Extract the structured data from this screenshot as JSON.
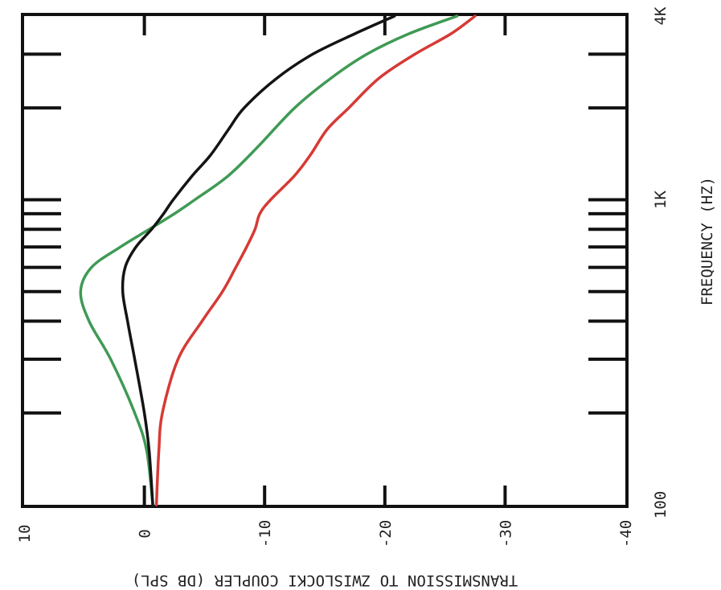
{
  "chart_data": {
    "type": "line",
    "orientation": "rotated 90° clockwise (frequency axis runs vertically, level axis horizontally, tick labels drawn rotated)",
    "xlabel": "FREQUENCY (HZ)",
    "ylabel": "TRANSMISSION TO ZWISLOCKI COUPLER (DB SPL)",
    "x_scale": "log",
    "x_range": [
      100,
      4000
    ],
    "x_tick_labels": [
      {
        "value": 100,
        "label": "100"
      },
      {
        "value": 1000,
        "label": "1K"
      },
      {
        "value": 4000,
        "label": "4K"
      }
    ],
    "x_minor_ticks": [
      200,
      300,
      400,
      500,
      600,
      700,
      800,
      900,
      1000,
      2000,
      3000
    ],
    "y_range": [
      -40,
      10
    ],
    "y_ticks": [
      {
        "value": 10,
        "label": "10"
      },
      {
        "value": 0,
        "label": "0"
      },
      {
        "value": -10,
        "label": "-10"
      },
      {
        "value": -20,
        "label": "-20"
      },
      {
        "value": -30,
        "label": "-30"
      },
      {
        "value": -40,
        "label": "-40"
      }
    ],
    "grid": false,
    "legend": "none",
    "series": [
      {
        "color": "#d63a35",
        "points": [
          [
            100,
            -1.0
          ],
          [
            150,
            -1.2
          ],
          [
            200,
            -1.5
          ],
          [
            300,
            -2.8
          ],
          [
            400,
            -4.8
          ],
          [
            500,
            -6.5
          ],
          [
            600,
            -7.6
          ],
          [
            700,
            -8.5
          ],
          [
            800,
            -9.2
          ],
          [
            900,
            -9.6
          ],
          [
            1000,
            -10.5
          ],
          [
            1200,
            -12.5
          ],
          [
            1400,
            -13.8
          ],
          [
            1700,
            -15.2
          ],
          [
            2000,
            -17.0
          ],
          [
            2500,
            -19.5
          ],
          [
            3000,
            -22.5
          ],
          [
            3500,
            -25.5
          ],
          [
            4000,
            -27.5
          ]
        ]
      },
      {
        "color": "#3f9a55",
        "points": [
          [
            100,
            -0.7
          ],
          [
            150,
            -0.2
          ],
          [
            200,
            0.8
          ],
          [
            300,
            2.8
          ],
          [
            400,
            4.6
          ],
          [
            500,
            5.3
          ],
          [
            600,
            4.4
          ],
          [
            700,
            2.0
          ],
          [
            800,
            -0.4
          ],
          [
            900,
            -2.5
          ],
          [
            1000,
            -4.2
          ],
          [
            1200,
            -7.0
          ],
          [
            1500,
            -9.5
          ],
          [
            2000,
            -12.5
          ],
          [
            2500,
            -15.5
          ],
          [
            3000,
            -18.5
          ],
          [
            3500,
            -22.0
          ],
          [
            4000,
            -26.0
          ]
        ]
      },
      {
        "color": "#141414",
        "points": [
          [
            100,
            -0.7
          ],
          [
            150,
            -0.4
          ],
          [
            200,
            0.0
          ],
          [
            300,
            0.8
          ],
          [
            400,
            1.4
          ],
          [
            500,
            1.8
          ],
          [
            600,
            1.6
          ],
          [
            700,
            0.7
          ],
          [
            800,
            -0.6
          ],
          [
            900,
            -1.6
          ],
          [
            1000,
            -2.4
          ],
          [
            1200,
            -4.0
          ],
          [
            1400,
            -5.5
          ],
          [
            1700,
            -7.0
          ],
          [
            2000,
            -8.3
          ],
          [
            2500,
            -11.0
          ],
          [
            3000,
            -14.0
          ],
          [
            3500,
            -17.5
          ],
          [
            4000,
            -20.8
          ]
        ]
      }
    ]
  }
}
